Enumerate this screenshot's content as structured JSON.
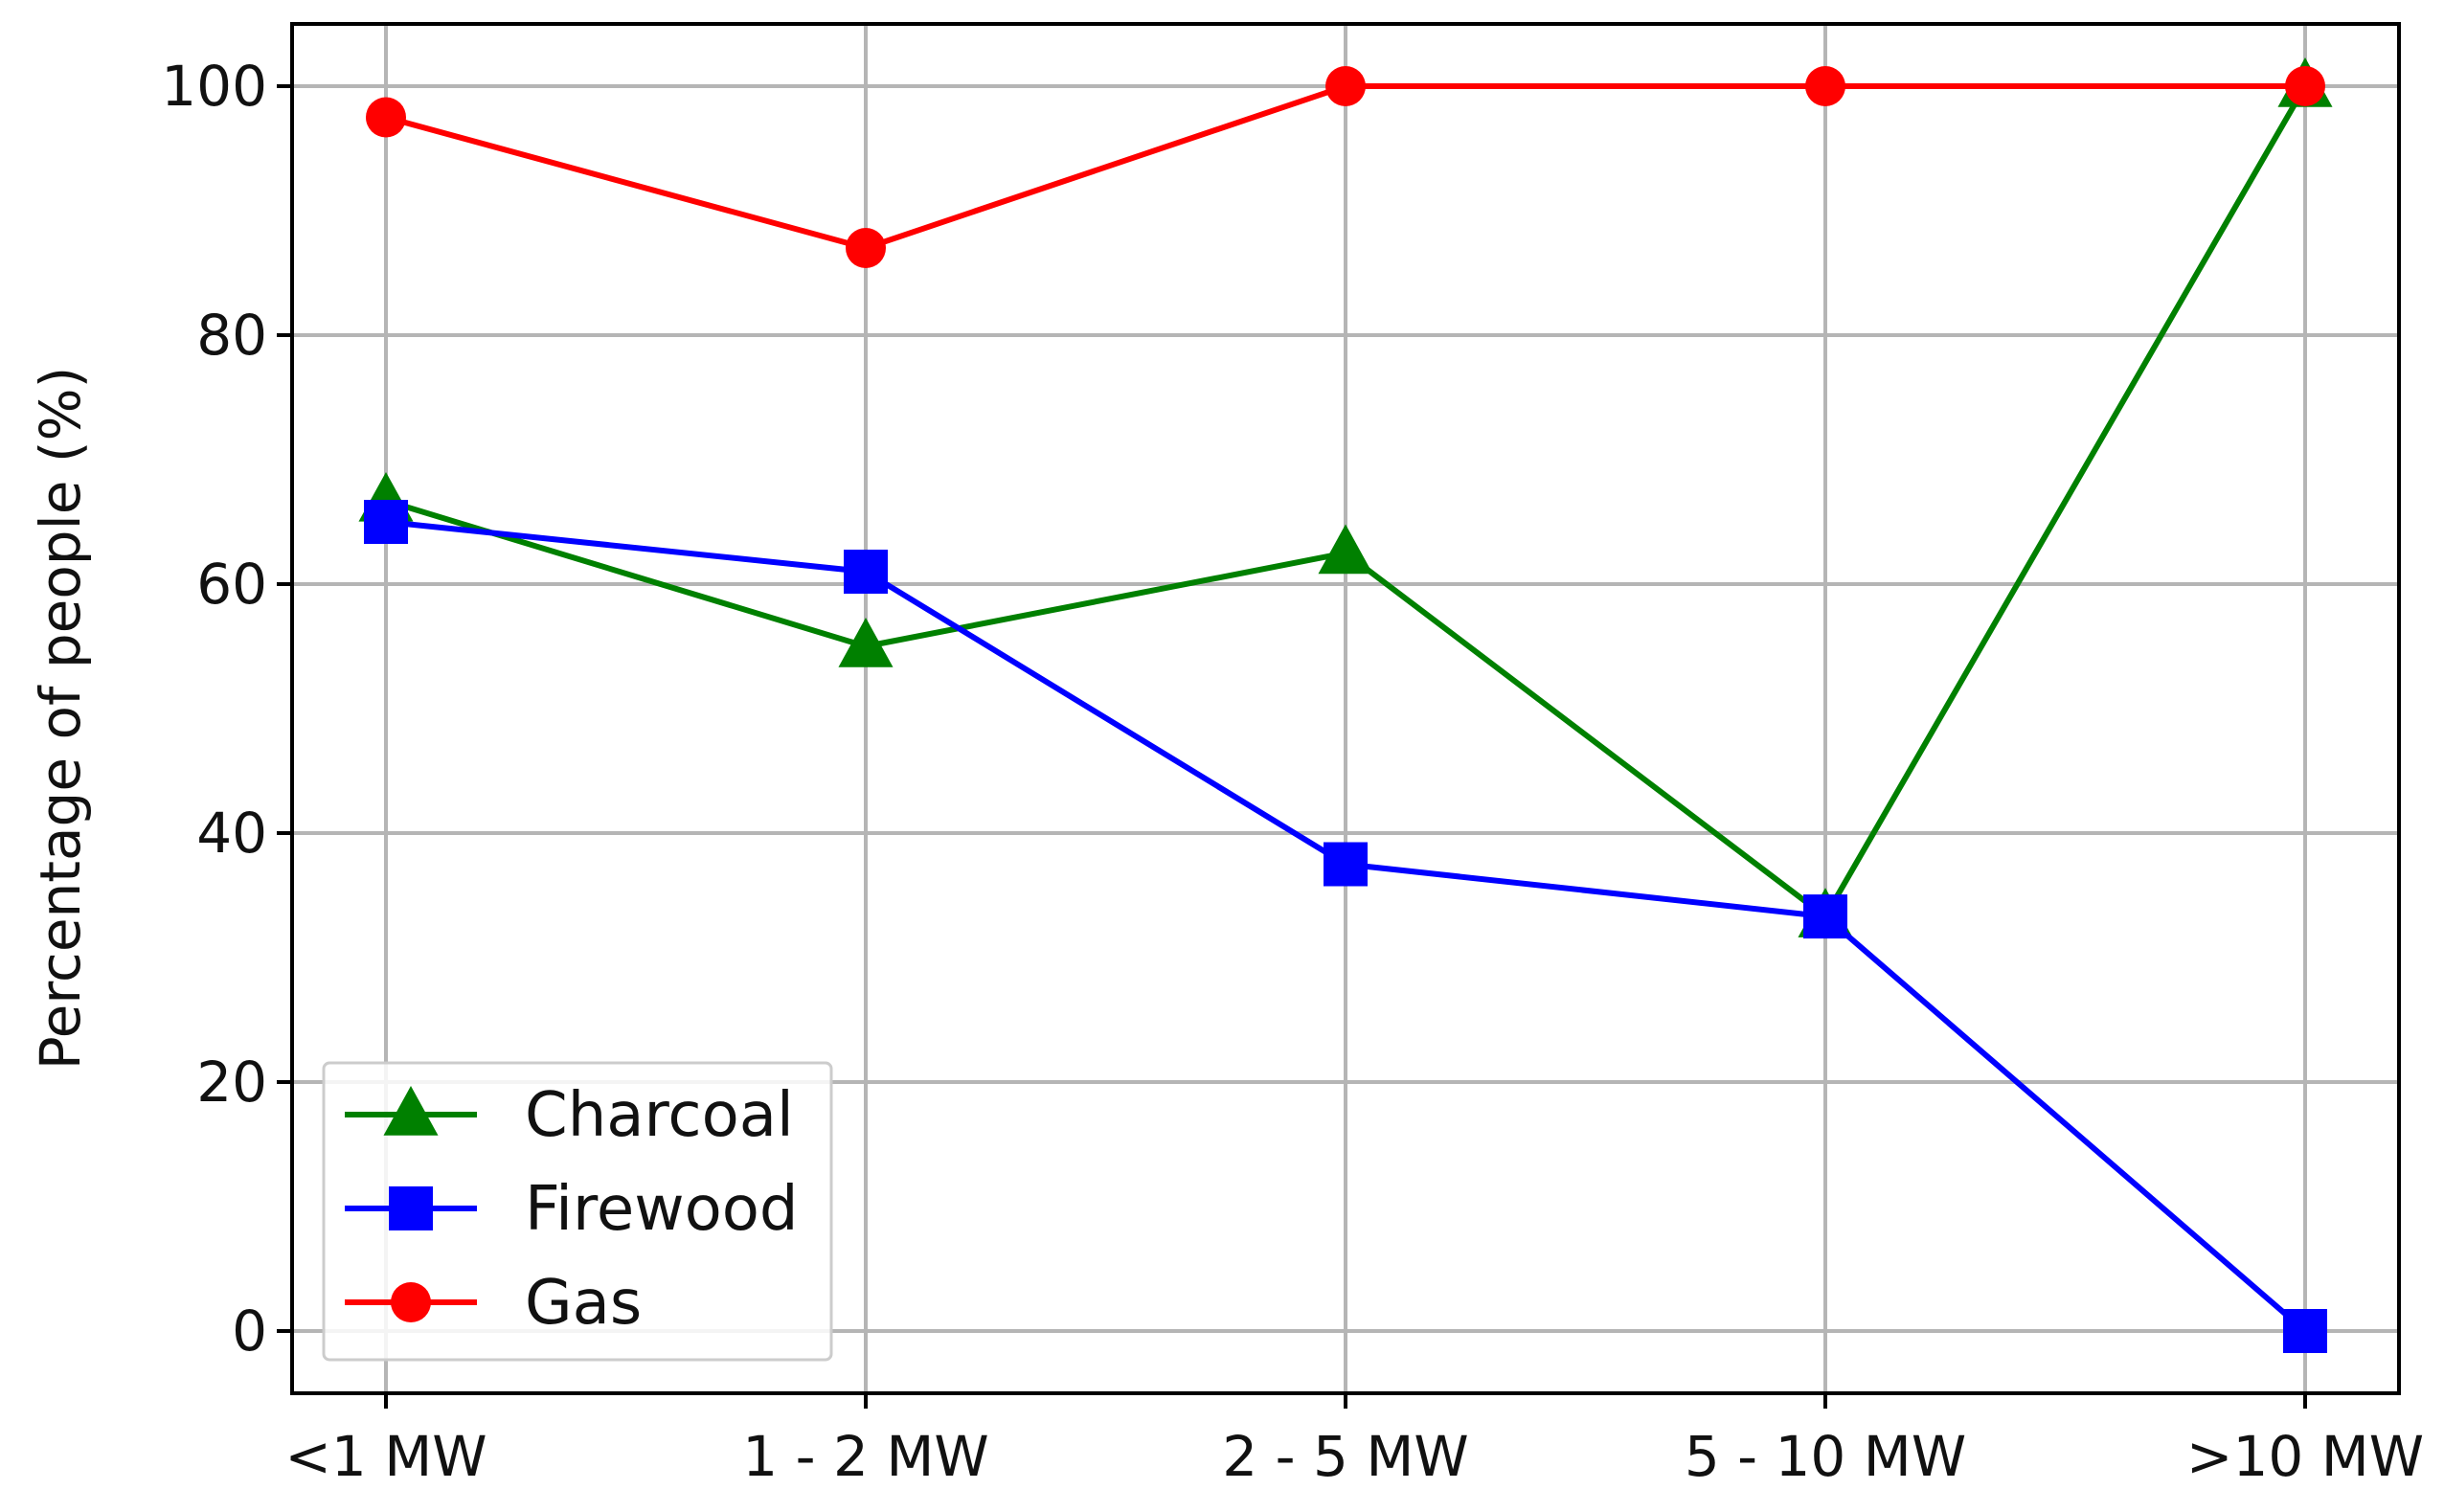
{
  "chart_data": {
    "type": "line",
    "title": "",
    "xlabel": "",
    "ylabel": "Percentage of people (%)",
    "categories": [
      "<1 MW",
      "1 - 2 MW",
      "2 - 5 MW",
      "5 - 10 MW",
      ">10 MW"
    ],
    "ylim": [
      -5,
      105
    ],
    "yticks": [
      0,
      20,
      40,
      60,
      80,
      100
    ],
    "grid": true,
    "legend_position": "lower-left",
    "series": [
      {
        "name": "Charcoal",
        "color": "#008000",
        "marker": "triangle",
        "values": [
          66.7,
          55.0,
          62.5,
          33.3,
          100.0
        ]
      },
      {
        "name": "Firewood",
        "color": "#0000ff",
        "marker": "square",
        "values": [
          65.0,
          61.0,
          37.5,
          33.3,
          0.0
        ]
      },
      {
        "name": "Gas",
        "color": "#ff0000",
        "marker": "circle",
        "values": [
          97.5,
          87.0,
          100.0,
          100.0,
          100.0
        ]
      }
    ]
  }
}
